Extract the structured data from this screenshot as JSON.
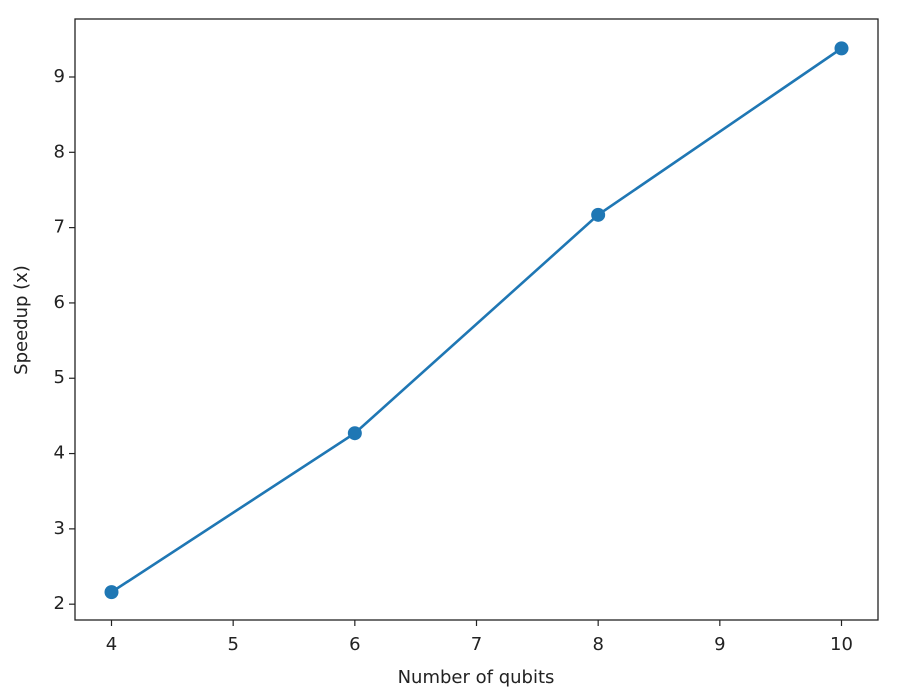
{
  "chart_data": {
    "type": "line",
    "xlabel": "Number of qubits",
    "ylabel": "Speedup (x)",
    "x": [
      4,
      6,
      8,
      10
    ],
    "values": [
      2.16,
      4.27,
      7.17,
      9.38
    ],
    "color": "#1f77b4",
    "xlim": [
      3.7,
      10.3
    ],
    "xticks": [
      4,
      5,
      6,
      7,
      8,
      9,
      10
    ],
    "ylim": [
      1.79,
      9.77
    ],
    "yticks": [
      2,
      3,
      4,
      5,
      6,
      7,
      8,
      9
    ],
    "grid": false
  }
}
